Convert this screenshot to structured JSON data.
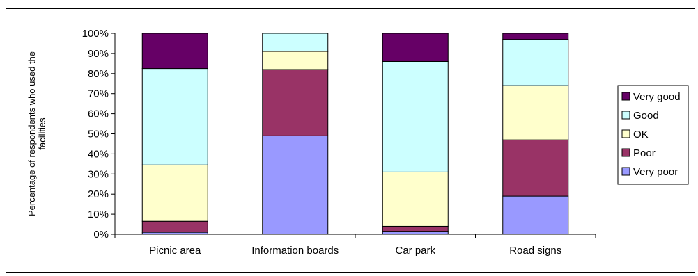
{
  "chart_data": {
    "type": "bar",
    "stacked": true,
    "percent_stacked": true,
    "categories": [
      "Picnic area",
      "Information boards",
      "Car park",
      "Road signs"
    ],
    "series": [
      {
        "name": "Very poor",
        "color": "#9999ff",
        "values": [
          1,
          49,
          1.5,
          19
        ]
      },
      {
        "name": "Poor",
        "color": "#993366",
        "values": [
          5.5,
          33,
          2.5,
          28
        ]
      },
      {
        "name": "OK",
        "color": "#ffffcc",
        "values": [
          28,
          9,
          27,
          27
        ]
      },
      {
        "name": "Good",
        "color": "#ccffff",
        "values": [
          48,
          9,
          55,
          23
        ]
      },
      {
        "name": "Very good",
        "color": "#660066",
        "values": [
          17.5,
          0,
          14,
          3
        ]
      }
    ],
    "ylabel": "Percentage of respondents who used the facilities",
    "ylim": [
      0,
      100
    ],
    "yticks": [
      "0%",
      "10%",
      "20%",
      "30%",
      "40%",
      "50%",
      "60%",
      "70%",
      "80%",
      "90%",
      "100%"
    ],
    "grid": false,
    "legend_position": "right",
    "legend_order": [
      "Very good",
      "Good",
      "OK",
      "Poor",
      "Very poor"
    ],
    "legend_labels": {
      "Very good": "Very good",
      "Good": "Good",
      "OK": "OK",
      "Poor": "Poor",
      "Very poor": "Very poor"
    }
  }
}
